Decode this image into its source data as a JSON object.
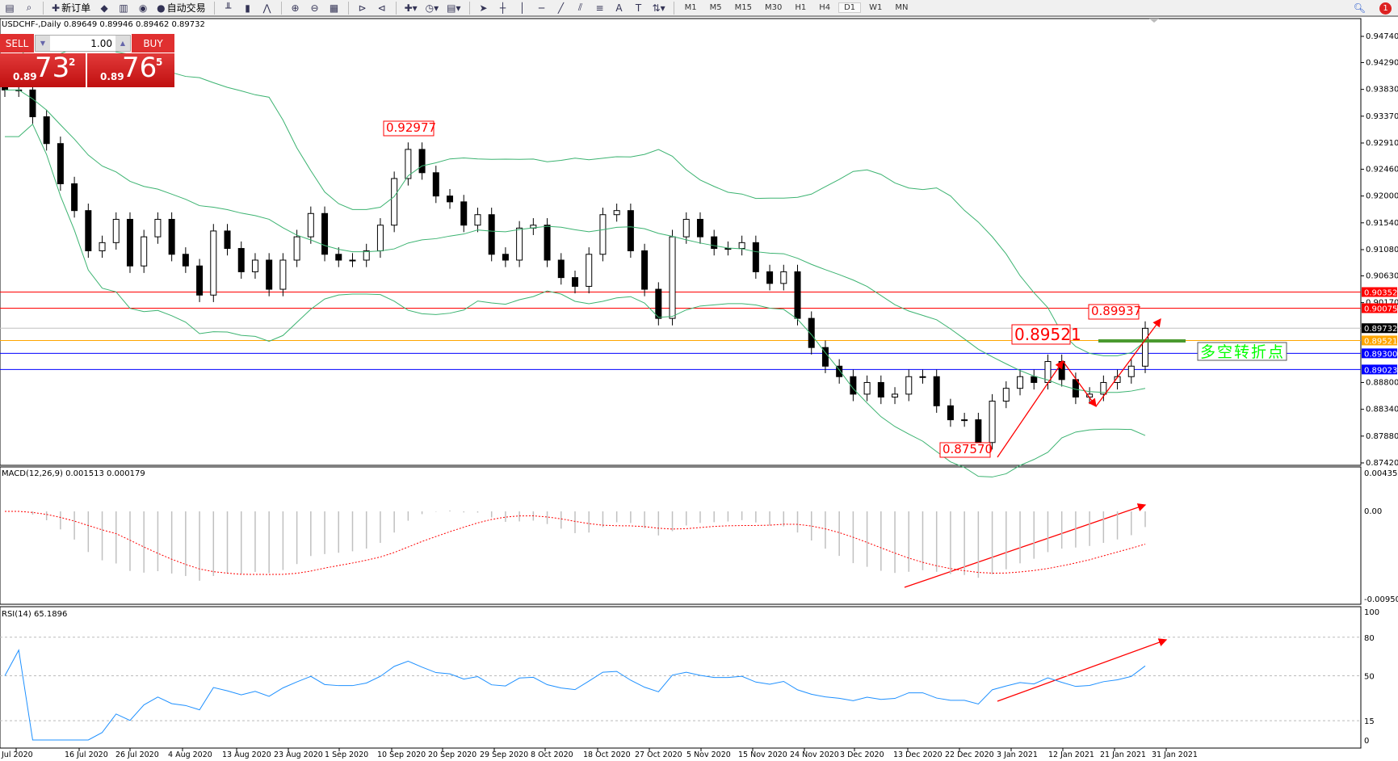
{
  "toolbar": {
    "items": [
      {
        "icon": "file-icon"
      },
      {
        "icon": "zoom-window-icon"
      },
      {
        "label": "新订单",
        "icon": "new-order-icon"
      },
      {
        "icon": "meta-editor-icon"
      },
      {
        "icon": "data-window-icon"
      },
      {
        "icon": "signal-icon"
      },
      {
        "label": "自动交易",
        "icon": "auto-trading-icon"
      },
      {
        "icon": "bar-chart-icon"
      },
      {
        "icon": "candlestick-icon"
      },
      {
        "icon": "line-chart-icon"
      },
      {
        "icon": "zoom-in-icon"
      },
      {
        "icon": "zoom-out-icon"
      },
      {
        "icon": "tile-windows-icon"
      },
      {
        "icon": "auto-scroll-icon"
      },
      {
        "icon": "chart-shift-icon"
      },
      {
        "icon": "indicators-icon"
      },
      {
        "icon": "periods-icon"
      },
      {
        "icon": "templates-icon"
      },
      {
        "icon": "cursor-icon"
      },
      {
        "icon": "crosshair-icon"
      },
      {
        "icon": "vertical-line-icon"
      },
      {
        "icon": "horizontal-line-icon"
      },
      {
        "icon": "trendline-icon"
      },
      {
        "icon": "equidistant-channel-icon"
      },
      {
        "icon": "fibonacci-icon"
      },
      {
        "icon": "text-icon"
      },
      {
        "icon": "text-label-icon"
      },
      {
        "icon": "arrows-icon"
      }
    ],
    "timeframes": [
      "M1",
      "M5",
      "M15",
      "M30",
      "H1",
      "H4",
      "D1",
      "W1",
      "MN"
    ],
    "active_timeframe": "D1",
    "notification_count": "1"
  },
  "chart_title": "USDCHF-,Daily  0.89649 0.89946 0.89462 0.89732",
  "trade_panel": {
    "sell_label": "SELL",
    "buy_label": "BUY",
    "lot": "1.00",
    "sell_prefix": "0.89",
    "sell_big": "73",
    "sell_sup": "2",
    "buy_prefix": "0.89",
    "buy_big": "76",
    "buy_sup": "5"
  },
  "chart_data": [
    {
      "type": "candlestick",
      "symbol": "USDCHF-",
      "timeframe": "Daily",
      "closes": [
        0.9382,
        0.9382,
        0.9336,
        0.929,
        0.9221,
        0.9175,
        0.9106,
        0.912,
        0.916,
        0.908,
        0.913,
        0.916,
        0.91,
        0.908,
        0.903,
        0.914,
        0.911,
        0.907,
        0.909,
        0.904,
        0.909,
        0.913,
        0.917,
        0.91,
        0.909,
        0.909,
        0.9106,
        0.915,
        0.923,
        0.928,
        0.924,
        0.92,
        0.919,
        0.915,
        0.9168,
        0.91,
        0.909,
        0.9145,
        0.915,
        0.909,
        0.906,
        0.9045,
        0.91,
        0.9168,
        0.9175,
        0.9106,
        0.904,
        0.899,
        0.913,
        0.916,
        0.913,
        0.911,
        0.911,
        0.912,
        0.907,
        0.905,
        0.907,
        0.899,
        0.894,
        0.8908,
        0.889,
        0.886,
        0.888,
        0.8855,
        0.886,
        0.889,
        0.889,
        0.884,
        0.8816,
        0.8816,
        0.8777,
        0.8848,
        0.887,
        0.889,
        0.888,
        0.8916,
        0.8885,
        0.8855,
        0.886,
        0.888,
        0.889,
        0.8908,
        0.8973
      ],
      "price_ticks": [
        "0.94740",
        "0.94290",
        "0.93830",
        "0.93370",
        "0.92910",
        "0.92460",
        "0.92000",
        "0.91540",
        "0.91080",
        "0.90630",
        "0.90170",
        "0.88800",
        "0.88340",
        "0.87880",
        "0.87420"
      ],
      "price_range": [
        0.8742,
        0.9474
      ],
      "date_labels": [
        "Jul 2020",
        "16 Jul 2020",
        "26 Jul 2020",
        "4 Aug 2020",
        "13 Aug 2020",
        "23 Aug 2020",
        "1 Sep 2020",
        "10 Sep 2020",
        "20 Sep 2020",
        "29 Sep 2020",
        "8 Oct 2020",
        "18 Oct 2020",
        "27 Oct 2020",
        "5 Nov 2020",
        "15 Nov 2020",
        "24 Nov 2020",
        "3 Dec 2020",
        "13 Dec 2020",
        "22 Dec 2020",
        "3 Jan 2021",
        "12 Jan 2021",
        "21 Jan 2021",
        "31 Jan 2021"
      ],
      "bollinger_color": "#3cb371",
      "hlines": [
        {
          "price": "0.90352",
          "color": "#ff0000"
        },
        {
          "price": "0.90075",
          "color": "#ff0000"
        },
        {
          "price": "0.89732",
          "color": "#c0c0c0",
          "label_bg": "#000000"
        },
        {
          "price": "0.89521",
          "color": "#ffa500"
        },
        {
          "price": "0.89300",
          "color": "#0000ff"
        },
        {
          "price": "0.89023",
          "color": "#0000ff"
        }
      ],
      "price_labels": [
        "0.92977",
        "0.89937",
        "0.89521",
        "0.87570"
      ],
      "annotation_text": "多空转折点",
      "annotation_color": "#00ff00",
      "arrow_color": "#ff0000"
    },
    {
      "type": "macd",
      "label": "MACD(12,26,9) 0.001513 0.000179",
      "ticks": [
        "0.004351",
        "0.00",
        "-0.009504"
      ],
      "range": [
        -0.009504,
        0.004351
      ],
      "histogram_color": "#c0c0c0",
      "signal_color": "#ff0000"
    },
    {
      "type": "rsi",
      "label": "RSI(14) 65.1896",
      "ticks": [
        "100",
        "80",
        "50",
        "15",
        "0"
      ],
      "levels": [
        80,
        50,
        15
      ],
      "color": "#1e90ff"
    }
  ]
}
